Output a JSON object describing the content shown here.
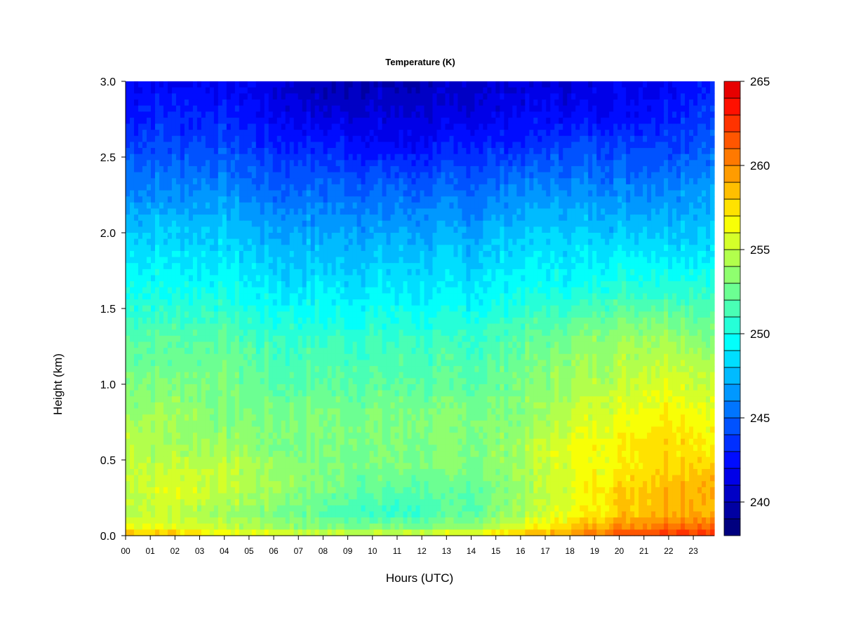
{
  "chart_data": {
    "type": "heatmap",
    "title": "Temperature (K)",
    "xlabel": "Hours (UTC)",
    "ylabel": "Height (km)",
    "x_ticks": [
      "00",
      "01",
      "02",
      "03",
      "04",
      "05",
      "06",
      "07",
      "08",
      "09",
      "10",
      "11",
      "12",
      "13",
      "14",
      "15",
      "16",
      "17",
      "18",
      "19",
      "20",
      "21",
      "22",
      "23"
    ],
    "y_ticks": [
      "0.0",
      "0.5",
      "1.0",
      "1.5",
      "2.0",
      "2.5",
      "3.0"
    ],
    "xlim": [
      0,
      23.85
    ],
    "ylim": [
      0,
      3.0
    ],
    "colorbar": {
      "range": [
        238,
        265
      ],
      "step": 1,
      "tick_values": [
        240,
        245,
        250,
        255,
        260,
        265
      ],
      "tick_labels": [
        "240",
        "245",
        "250",
        "255",
        "260",
        "265"
      ],
      "colors": [
        "#00007F",
        "#0000A2",
        "#0000C5",
        "#0000E8",
        "#000CFF",
        "#002FFF",
        "#0052FF",
        "#0075FF",
        "#0098FF",
        "#00BBFF",
        "#00DEFF",
        "#03FFFB",
        "#26FFD8",
        "#49FFB5",
        "#6CFF92",
        "#8FFF6F",
        "#B2FF4C",
        "#D5FF29",
        "#F8FF06",
        "#FFE200",
        "#FFBF00",
        "#FF9C00",
        "#FF7900",
        "#FF5600",
        "#FF3300",
        "#FF1000",
        "#E70000",
        "#C40000",
        "#A10000",
        "#7F0000"
      ]
    },
    "z_hours": [
      0,
      2,
      4,
      6,
      8,
      10,
      12,
      14,
      16,
      18,
      20,
      22,
      23.85
    ],
    "z_heights_km": [
      0.0,
      0.05,
      0.15,
      0.3,
      0.45,
      0.6,
      0.8,
      1.0,
      1.3,
      1.6,
      2.0,
      2.3,
      2.6,
      2.8,
      3.0
    ],
    "z_values": [
      [
        259,
        259,
        257,
        257,
        256,
        256,
        256,
        257,
        259,
        260,
        262,
        263,
        263
      ],
      [
        256,
        256,
        255,
        254,
        253,
        253,
        253,
        254,
        256,
        258,
        260,
        261,
        261
      ],
      [
        255,
        255,
        254,
        253,
        252,
        251,
        251,
        252,
        254,
        256,
        258,
        259,
        259
      ],
      [
        255,
        256,
        255,
        254,
        253,
        252,
        252,
        252,
        254,
        256,
        258,
        259,
        259
      ],
      [
        255,
        255,
        255,
        254,
        253,
        253,
        253,
        253,
        254,
        256,
        257,
        258,
        258
      ],
      [
        255,
        254,
        254,
        253,
        253,
        253,
        253,
        253,
        254,
        256,
        257,
        258,
        257
      ],
      [
        254,
        254,
        253,
        253,
        253,
        253,
        253,
        253,
        253,
        255,
        256,
        257,
        256
      ],
      [
        253,
        253,
        253,
        252,
        252,
        252,
        252,
        252,
        253,
        254,
        255,
        256,
        255
      ],
      [
        252,
        252,
        252,
        251,
        251,
        251,
        251,
        251,
        252,
        253,
        254,
        254,
        253
      ],
      [
        250,
        250,
        250,
        249,
        249,
        249,
        249,
        249,
        250,
        250,
        251,
        251,
        251
      ],
      [
        248,
        248,
        248,
        247,
        247,
        247,
        247,
        247,
        248,
        248,
        248,
        248,
        248
      ],
      [
        246,
        246,
        246,
        245,
        245,
        245,
        245,
        245,
        246,
        246,
        246,
        246,
        247
      ],
      [
        244,
        244,
        244,
        243,
        243,
        242,
        242,
        243,
        243,
        244,
        244,
        244,
        245
      ],
      [
        243,
        243,
        243,
        242,
        241,
        241,
        241,
        241,
        242,
        242,
        242,
        243,
        244
      ],
      [
        242,
        242,
        242,
        241,
        240,
        240,
        240,
        241,
        241,
        241,
        242,
        242,
        243
      ]
    ]
  }
}
